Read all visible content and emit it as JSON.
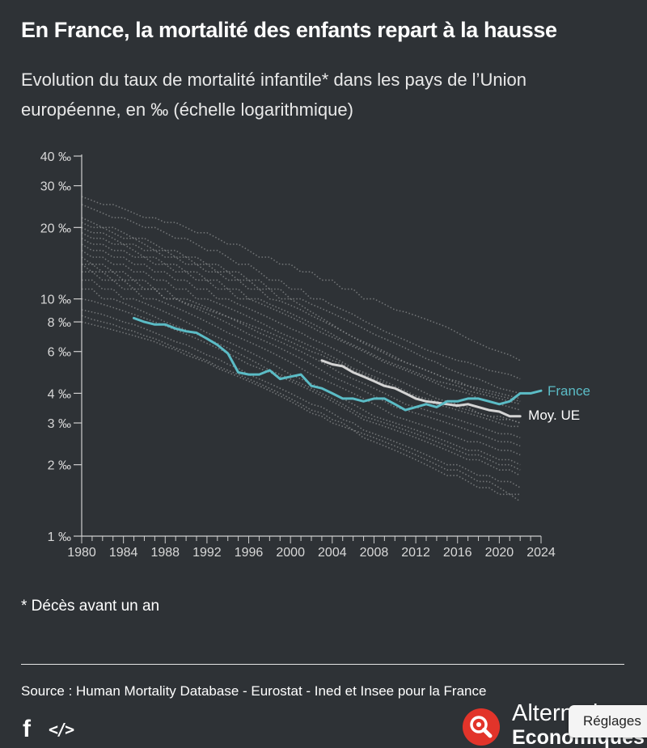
{
  "header": {
    "title": "En France, la mortalité des enfants repart à la hausse",
    "subtitle": "Evolution du taux de mortalité infantile* dans les pays de l’Union européenne, en ‰ (échelle logarithmique)"
  },
  "chart_data": {
    "type": "line",
    "title": "En France, la mortalité des enfants repart à la hausse",
    "subtitle": "Evolution du taux de mortalité infantile* dans les pays de l’Union européenne, en ‰ (échelle logarithmique)",
    "xlabel": "",
    "ylabel": "",
    "y_scale": "log",
    "ylim": [
      1,
      40
    ],
    "xlim": [
      1980,
      2024
    ],
    "x_ticks": [
      1980,
      1984,
      1988,
      1992,
      1996,
      2000,
      2004,
      2008,
      2012,
      2016,
      2020,
      2024
    ],
    "y_ticks": [
      1,
      2,
      3,
      4,
      6,
      8,
      10,
      20,
      30,
      40
    ],
    "y_tick_labels": [
      "1 ‰",
      "2 ‰",
      "3 ‰",
      "4 ‰",
      "6 ‰",
      "8 ‰",
      "10 ‰",
      "20 ‰",
      "30 ‰",
      "40 ‰"
    ],
    "grid": false,
    "colors": {
      "france": "#5bbcc6",
      "eu": "#d4d4d4",
      "countries": "#8a8c8e",
      "axis": "#cfcfcf"
    },
    "series": [
      {
        "name": "France",
        "highlight": true,
        "x": [
          1985,
          1986,
          1987,
          1988,
          1989,
          1990,
          1991,
          1992,
          1993,
          1994,
          1995,
          1996,
          1997,
          1998,
          1999,
          2000,
          2001,
          2002,
          2003,
          2004,
          2005,
          2006,
          2007,
          2008,
          2009,
          2010,
          2011,
          2012,
          2013,
          2014,
          2015,
          2016,
          2017,
          2018,
          2019,
          2020,
          2021,
          2022,
          2023,
          2024
        ],
        "values": [
          8.3,
          8.0,
          7.8,
          7.8,
          7.5,
          7.3,
          7.2,
          6.8,
          6.4,
          5.9,
          4.9,
          4.8,
          4.8,
          5.0,
          4.6,
          4.7,
          4.8,
          4.3,
          4.2,
          4.0,
          3.8,
          3.8,
          3.7,
          3.8,
          3.8,
          3.6,
          3.4,
          3.5,
          3.6,
          3.5,
          3.7,
          3.7,
          3.8,
          3.8,
          3.7,
          3.6,
          3.7,
          4.0,
          4.0,
          4.1
        ]
      },
      {
        "name": "Moy. UE",
        "highlight": true,
        "x": [
          2003,
          2004,
          2005,
          2006,
          2007,
          2008,
          2009,
          2010,
          2011,
          2012,
          2013,
          2014,
          2015,
          2016,
          2017,
          2018,
          2019,
          2020,
          2021,
          2022
        ],
        "values": [
          5.5,
          5.3,
          5.2,
          4.9,
          4.7,
          4.5,
          4.3,
          4.2,
          4.0,
          3.8,
          3.7,
          3.65,
          3.6,
          3.55,
          3.6,
          3.5,
          3.4,
          3.35,
          3.2,
          3.2
        ]
      },
      {
        "name": "",
        "x_start": 1980,
        "values": [
          27,
          26,
          25,
          25,
          24,
          23,
          22,
          22,
          21,
          21,
          20,
          19,
          19,
          18,
          17,
          17,
          16,
          15,
          15,
          14,
          14,
          13,
          13,
          12,
          12,
          11,
          11,
          10,
          10,
          9.5,
          9,
          8.8,
          8.5,
          8.2,
          7.9,
          7.6,
          7.2,
          6.8,
          6.5,
          6.2,
          6,
          5.8,
          5.5
        ]
      },
      {
        "name": "",
        "x_start": 1980,
        "values": [
          25,
          24,
          23,
          22,
          22,
          21,
          20,
          20,
          19,
          18,
          18,
          17,
          16,
          16,
          15,
          14,
          14,
          13,
          12,
          12,
          11,
          11,
          10,
          10,
          9.4,
          9,
          8.6,
          8.1,
          7.7,
          7.3,
          7,
          6.7,
          6.4,
          6.1,
          5.9,
          5.7,
          5.5,
          5.4,
          5.2,
          5,
          4.9,
          4.8,
          4.6
        ]
      },
      {
        "name": "",
        "x_start": 1980,
        "values": [
          22,
          21,
          20,
          20,
          19,
          18,
          18,
          17,
          16,
          16,
          15,
          15,
          14,
          14,
          13,
          13,
          12,
          12,
          11,
          11,
          10,
          10,
          9.5,
          9.1,
          8.7,
          8.3,
          7.9,
          7.5,
          7.1,
          6.8,
          6.5,
          6.2,
          5.9,
          5.6,
          5.4,
          5.1,
          4.9,
          4.7,
          4.6,
          4.4,
          4.2,
          4.1,
          4
        ]
      },
      {
        "name": "",
        "x_start": 1980,
        "values": [
          20,
          19,
          19,
          18,
          17,
          17,
          16,
          16,
          15,
          15,
          14,
          14,
          13,
          13,
          12,
          12,
          11,
          11,
          10,
          9.8,
          9.4,
          9,
          8.5,
          8.1,
          7.7,
          7.3,
          6.9,
          6.6,
          6.3,
          6,
          5.7,
          5.4,
          5.2,
          5,
          4.8,
          4.6,
          4.4,
          4.3,
          4.1,
          4,
          3.9,
          3.8,
          3.7
        ]
      },
      {
        "name": "",
        "x_start": 1980,
        "values": [
          18,
          17,
          17,
          16,
          16,
          15,
          15,
          14,
          14,
          13,
          13,
          12,
          12,
          11,
          11,
          10,
          10,
          9.6,
          9.2,
          8.8,
          8.4,
          8,
          7.6,
          7.2,
          6.9,
          6.6,
          6.3,
          6,
          5.7,
          5.4,
          5.2,
          5,
          4.8,
          4.6,
          4.4,
          4.2,
          4.1,
          4,
          3.8,
          3.7,
          3.6,
          3.5,
          3.4
        ]
      },
      {
        "name": "",
        "x_start": 1980,
        "values": [
          17,
          16,
          16,
          15,
          15,
          14,
          14,
          13,
          13,
          12,
          12,
          11,
          11,
          10,
          10,
          9.5,
          9.1,
          8.7,
          8.3,
          7.9,
          7.5,
          7.2,
          6.8,
          6.5,
          6.2,
          5.9,
          5.6,
          5.3,
          5,
          4.8,
          4.6,
          4.4,
          4.2,
          4,
          3.8,
          3.7,
          3.6,
          3.5,
          3.3,
          3.2,
          3.1,
          3.1,
          3
        ]
      },
      {
        "name": "",
        "x_start": 1980,
        "values": [
          16,
          15,
          15,
          14,
          14,
          13,
          13,
          12,
          12,
          11,
          11,
          10,
          10,
          9.6,
          9.2,
          8.8,
          8.4,
          8,
          7.6,
          7.2,
          6.9,
          6.6,
          6.3,
          6,
          5.7,
          5.4,
          5.1,
          4.9,
          4.7,
          4.5,
          4.3,
          4.1,
          3.9,
          3.7,
          3.6,
          3.5,
          3.4,
          3.3,
          3.2,
          3.1,
          3,
          2.9,
          2.9
        ]
      },
      {
        "name": "",
        "x_start": 1980,
        "values": [
          15,
          14,
          14,
          13,
          13,
          12,
          12,
          11,
          11,
          10,
          10,
          9.6,
          9.2,
          8.8,
          8.4,
          8,
          7.6,
          7.2,
          6.9,
          6.6,
          6.3,
          6,
          5.7,
          5.4,
          5.1,
          4.8,
          4.6,
          4.4,
          4.2,
          4,
          3.8,
          3.6,
          3.5,
          3.4,
          3.3,
          3.2,
          3.1,
          3,
          2.9,
          2.8,
          2.7,
          2.7,
          2.6
        ]
      },
      {
        "name": "",
        "x_start": 1980,
        "values": [
          14,
          14,
          13,
          13,
          12,
          12,
          11,
          11,
          10,
          10,
          9.5,
          9.1,
          8.7,
          8.3,
          7.9,
          7.5,
          7.1,
          6.8,
          6.5,
          6.2,
          5.9,
          5.6,
          5.3,
          5,
          4.7,
          4.5,
          4.3,
          4.1,
          3.9,
          3.7,
          3.5,
          3.4,
          3.3,
          3.2,
          3.1,
          3,
          2.9,
          2.8,
          2.7,
          2.6,
          2.5,
          2.5,
          2.4
        ]
      },
      {
        "name": "",
        "x_start": 1980,
        "values": [
          13,
          13,
          12,
          12,
          11,
          11,
          10,
          10,
          9.6,
          9.2,
          8.8,
          8.4,
          8,
          7.6,
          7.2,
          6.9,
          6.6,
          6.3,
          6,
          5.7,
          5.4,
          5.1,
          4.8,
          4.6,
          4.4,
          4.2,
          4,
          3.8,
          3.6,
          3.4,
          3.2,
          3.1,
          3,
          2.9,
          2.8,
          2.7,
          2.6,
          2.5,
          2.5,
          2.4,
          2.3,
          2.3,
          2.2
        ]
      },
      {
        "name": "",
        "x_start": 1980,
        "values": [
          12,
          12,
          11,
          11,
          10,
          10,
          9.6,
          9.2,
          8.8,
          8.4,
          8,
          7.6,
          7.2,
          6.9,
          6.6,
          6.3,
          6,
          5.7,
          5.4,
          5.1,
          4.8,
          4.6,
          4.4,
          4.2,
          4,
          3.8,
          3.6,
          3.4,
          3.2,
          3.1,
          3,
          2.9,
          2.8,
          2.7,
          2.6,
          2.5,
          2.4,
          2.3,
          2.3,
          2.2,
          2.1,
          2.1,
          2
        ]
      },
      {
        "name": "",
        "x_start": 1980,
        "values": [
          11,
          11,
          10,
          10,
          9.6,
          9.2,
          8.8,
          8.4,
          8,
          7.7,
          7.4,
          7.1,
          6.8,
          6.5,
          6.2,
          5.9,
          5.6,
          5.3,
          5,
          4.8,
          4.6,
          4.4,
          4.2,
          4,
          3.8,
          3.6,
          3.4,
          3.2,
          3.1,
          3,
          2.9,
          2.8,
          2.7,
          2.6,
          2.5,
          2.4,
          2.3,
          2.2,
          2.2,
          2.1,
          2,
          2,
          1.9
        ]
      },
      {
        "name": "",
        "x_start": 1980,
        "values": [
          10,
          9.8,
          9.5,
          9.2,
          8.9,
          8.6,
          8.3,
          8,
          7.7,
          7.4,
          7.1,
          6.8,
          6.5,
          6.2,
          5.9,
          5.6,
          5.3,
          5.1,
          4.9,
          4.7,
          4.5,
          4.3,
          4.1,
          3.9,
          3.7,
          3.5,
          3.3,
          3.1,
          3,
          2.9,
          2.8,
          2.7,
          2.6,
          2.5,
          2.4,
          2.3,
          2.2,
          2.1,
          2.1,
          2,
          1.9,
          1.9,
          1.8
        ]
      },
      {
        "name": "",
        "x_start": 1980,
        "values": [
          9,
          8.8,
          8.6,
          8.3,
          8,
          7.8,
          7.5,
          7.2,
          6.9,
          6.6,
          6.4,
          6.1,
          5.8,
          5.6,
          5.3,
          5.1,
          4.8,
          4.6,
          4.4,
          4.2,
          4,
          3.8,
          3.6,
          3.5,
          3.3,
          3.1,
          3,
          2.8,
          2.7,
          2.6,
          2.5,
          2.4,
          2.3,
          2.2,
          2.1,
          2,
          2,
          1.9,
          1.8,
          1.8,
          1.7,
          1.7,
          1.6
        ]
      },
      {
        "name": "",
        "x_start": 1980,
        "values": [
          8.5,
          8.2,
          8,
          7.8,
          7.5,
          7.3,
          7,
          6.8,
          6.5,
          6.2,
          6,
          5.7,
          5.5,
          5.2,
          5,
          4.8,
          4.6,
          4.4,
          4.2,
          4,
          3.8,
          3.6,
          3.4,
          3.3,
          3.1,
          3,
          2.8,
          2.7,
          2.6,
          2.5,
          2.4,
          2.3,
          2.2,
          2.1,
          2,
          1.9,
          1.9,
          1.8,
          1.7,
          1.7,
          1.6,
          1.5,
          1.5
        ]
      },
      {
        "name": "",
        "x_start": 1980,
        "values": [
          8,
          7.8,
          7.6,
          7.4,
          7.2,
          7,
          6.8,
          6.6,
          6.3,
          6.1,
          5.8,
          5.6,
          5.4,
          5.1,
          4.9,
          4.7,
          4.5,
          4.3,
          4.1,
          3.9,
          3.7,
          3.5,
          3.3,
          3.2,
          3,
          2.9,
          2.8,
          2.6,
          2.5,
          2.4,
          2.3,
          2.2,
          2.1,
          2,
          1.9,
          1.8,
          1.8,
          1.7,
          1.6,
          1.6,
          1.5,
          1.5,
          1.4
        ]
      },
      {
        "name": "",
        "x_start": 1980,
        "values": [
          21,
          20,
          20,
          19,
          18,
          18,
          17,
          16,
          16,
          15,
          15,
          14,
          14,
          13,
          13,
          12,
          12,
          11,
          11,
          10,
          10,
          9.4,
          8.8,
          8.3,
          7.8,
          7.3,
          6.9,
          6.5,
          6.2,
          5.9,
          5.6,
          5.4,
          5.2,
          5,
          4.8,
          4.6,
          4.5,
          4.3,
          4.2,
          4.1,
          4,
          3.9,
          3.8
        ]
      },
      {
        "name": "",
        "x_start": 1980,
        "values": [
          19,
          18,
          18,
          17,
          17,
          16,
          15,
          15,
          14,
          14,
          13,
          13,
          12,
          12,
          11,
          11,
          10,
          10,
          9.5,
          9.1,
          8.7,
          8.3,
          7.9,
          7.5,
          7.1,
          6.7,
          6.4,
          6.1,
          5.8,
          5.5,
          5.3,
          5.1,
          4.9,
          4.7,
          4.5,
          4.4,
          4.3,
          4.1,
          4,
          3.9,
          3.8,
          3.7,
          3.6
        ]
      },
      {
        "name": "",
        "x_start": 1980,
        "values": [
          14,
          13,
          13,
          12,
          12,
          11,
          11,
          11,
          10,
          10,
          9.6,
          9.3,
          9,
          8.7,
          8.4,
          8.1,
          7.8,
          7.5,
          7.2,
          6.9,
          6.6,
          6.3,
          6,
          5.8,
          5.5,
          5.3,
          5,
          4.8,
          4.6,
          4.4,
          4.2,
          4,
          3.9,
          3.8,
          3.7,
          3.6,
          3.5,
          3.4,
          3.3,
          3.2,
          3.2,
          3.1,
          3
        ]
      }
    ]
  },
  "legend": {
    "france_label": "France",
    "eu_label": "Moy. UE"
  },
  "footnote": "* Décès avant un an",
  "source": "Source : Human Mortality Database - Eurostat - Ined et Insee pour la France",
  "footer": {
    "facebook_icon": "f",
    "embed_icon": "</>",
    "brand_line1": "Alternatives",
    "brand_line2": "Economiques",
    "settings_label": "Réglages"
  }
}
